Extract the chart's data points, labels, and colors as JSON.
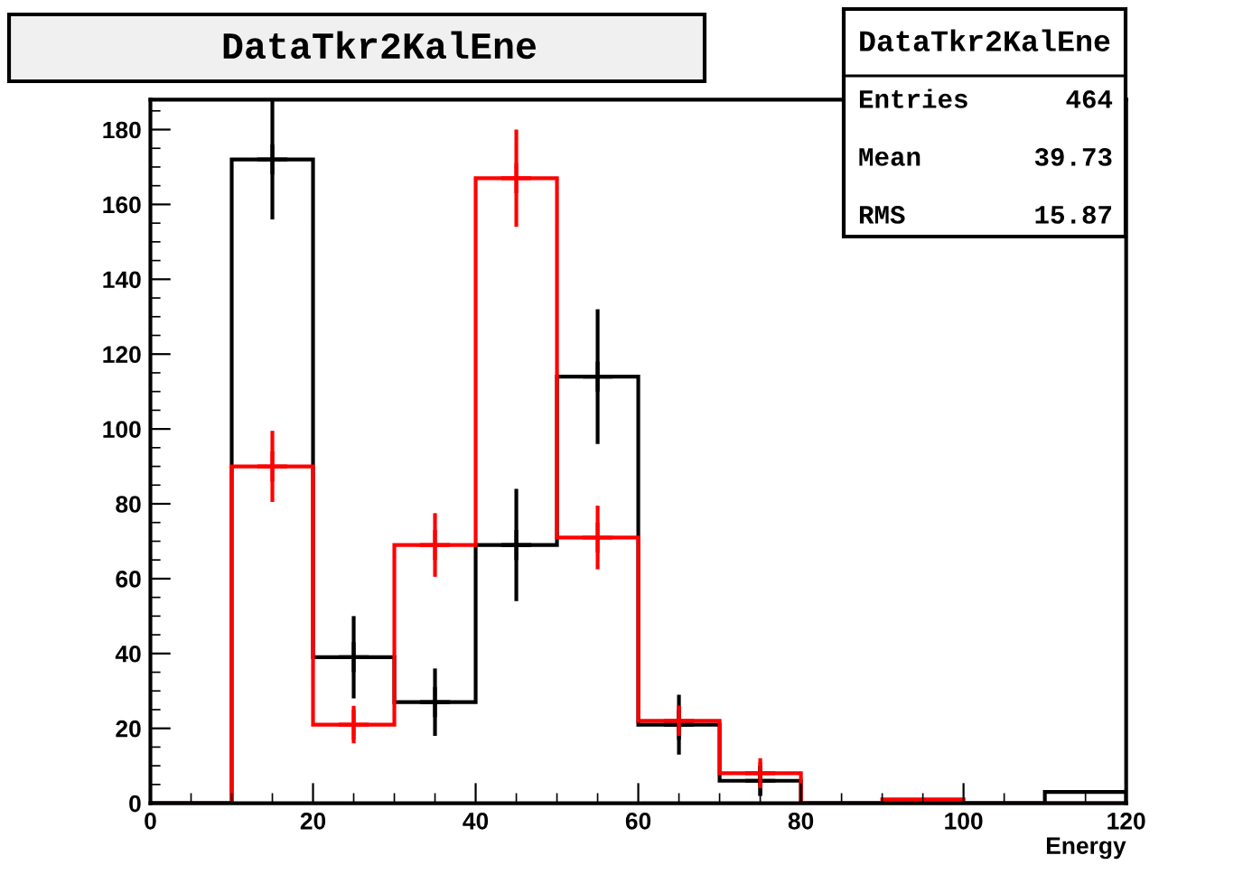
{
  "chart_data": {
    "type": "histogram",
    "title": "DataTkr2KalEne",
    "xlabel": "Energy",
    "bins": [
      0,
      10,
      20,
      30,
      40,
      50,
      60,
      70,
      80,
      90,
      100,
      110,
      120
    ],
    "series": [
      {
        "color": "#000000",
        "values": [
          0,
          172,
          39,
          27,
          69,
          114,
          21,
          6,
          0,
          0,
          0,
          3
        ]
      },
      {
        "color": "#ff0000",
        "values": [
          0,
          90,
          21,
          69,
          167,
          71,
          22,
          8,
          0,
          1,
          0,
          0
        ]
      },
      {
        "type": "scatter",
        "marker": "cross",
        "color": "#000000",
        "x": [
          15,
          25,
          35,
          45,
          55,
          65,
          75
        ],
        "values": [
          172,
          39,
          27,
          69,
          114,
          21,
          6
        ],
        "errors": [
          16,
          11,
          9,
          15,
          18,
          8,
          4
        ]
      },
      {
        "type": "scatter",
        "marker": "cross",
        "color": "#ff0000",
        "x": [
          15,
          25,
          35,
          45,
          55,
          65,
          75
        ],
        "values": [
          90,
          21,
          69,
          167,
          71,
          22,
          8
        ],
        "errors": [
          9.5,
          5,
          8.5,
          13,
          8.5,
          4,
          3
        ]
      }
    ],
    "xlim": [
      0,
      120
    ],
    "xticks": [
      0,
      20,
      40,
      60,
      80,
      100,
      120
    ],
    "ylim": [
      0,
      188
    ],
    "yticks": [
      0,
      20,
      40,
      60,
      80,
      100,
      120,
      140,
      160,
      180
    ],
    "annotations": [
      "DataTkr2KalEne",
      "Entries",
      "464",
      "Mean",
      "39.73",
      "RMS",
      "15.87"
    ],
    "grid": false,
    "legend": false
  }
}
